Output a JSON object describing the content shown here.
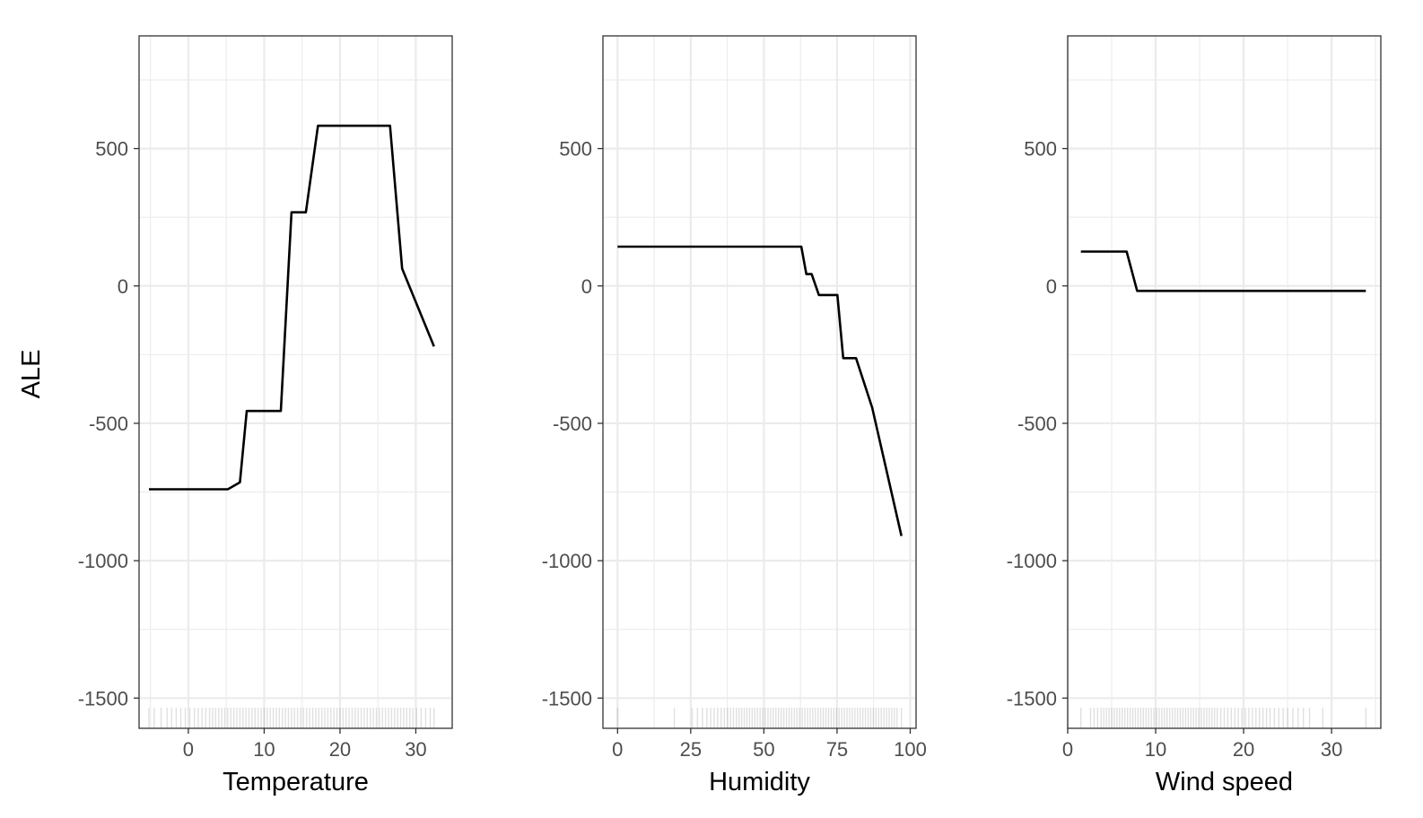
{
  "chart_data": [
    {
      "type": "line",
      "xlabel": "Temperature",
      "ylabel": "ALE",
      "xlim": [
        -6.5,
        34.8
      ],
      "ylim": [
        -1610,
        910
      ],
      "xticks": [
        0,
        10,
        20,
        30
      ],
      "yticks": [
        -1500,
        -1000,
        -500,
        0,
        500
      ],
      "grid": true,
      "x": [
        -5.2,
        5.2,
        6.8,
        7.7,
        12.2,
        13.6,
        15.5,
        17.1,
        26.6,
        28.2,
        32.4
      ],
      "y": [
        -740,
        -740,
        -715,
        -455,
        -455,
        268,
        268,
        583,
        583,
        63,
        -220
      ],
      "rug": [
        -5.2,
        -4.5,
        -3.6,
        -2.8,
        -2.2,
        -1.6,
        -1.0,
        -0.4,
        0.2,
        0.8,
        1.3,
        1.8,
        2.3,
        2.8,
        3.2,
        3.6,
        4.0,
        4.4,
        4.8,
        5.2,
        5.6,
        6.0,
        6.4,
        6.8,
        7.2,
        7.6,
        8.0,
        8.4,
        8.8,
        9.2,
        9.6,
        10.0,
        10.4,
        10.8,
        11.2,
        11.6,
        12.0,
        12.4,
        12.8,
        13.2,
        13.6,
        14.0,
        14.4,
        14.8,
        15.2,
        15.6,
        16.0,
        16.4,
        16.8,
        17.2,
        17.6,
        18.0,
        18.4,
        18.8,
        19.2,
        19.6,
        20.0,
        20.4,
        20.8,
        21.2,
        21.6,
        22.0,
        22.4,
        22.8,
        23.2,
        23.6,
        24.0,
        24.4,
        24.8,
        25.2,
        25.6,
        26.0,
        26.4,
        26.8,
        27.2,
        27.6,
        28.0,
        28.4,
        28.8,
        29.2,
        29.6,
        30.1,
        30.7,
        31.3,
        31.9,
        32.4
      ]
    },
    {
      "type": "line",
      "xlabel": "Humidity",
      "ylabel": "",
      "xlim": [
        -5,
        102
      ],
      "ylim": [
        -1610,
        910
      ],
      "xticks": [
        0,
        25,
        50,
        75,
        100
      ],
      "yticks": [
        -1500,
        -1000,
        -500,
        0,
        500
      ],
      "grid": true,
      "x": [
        0,
        62.8,
        64.5,
        66.3,
        68.8,
        75.1,
        77.1,
        81.5,
        87.0,
        97.0
      ],
      "y": [
        143,
        143,
        43,
        43,
        -33,
        -33,
        -263,
        -263,
        -443,
        -910
      ],
      "rug": [
        0,
        19.4,
        25.5,
        27.3,
        29.0,
        30.5,
        31.8,
        33.0,
        34.2,
        35.4,
        36.5,
        37.6,
        38.6,
        39.6,
        40.6,
        41.5,
        42.4,
        43.3,
        44.2,
        45.1,
        46.0,
        46.9,
        47.8,
        48.7,
        49.6,
        50.5,
        51.4,
        52.3,
        53.2,
        54.1,
        55.0,
        55.9,
        56.8,
        57.7,
        58.6,
        59.5,
        60.4,
        61.3,
        62.2,
        63.1,
        64.0,
        64.9,
        65.8,
        66.7,
        67.6,
        68.5,
        69.4,
        70.3,
        71.2,
        72.1,
        73.0,
        73.9,
        74.8,
        75.7,
        76.6,
        77.5,
        78.4,
        79.3,
        80.2,
        81.1,
        82.0,
        82.9,
        83.8,
        84.7,
        85.6,
        86.5,
        87.4,
        88.3,
        89.2,
        90.1,
        91.0,
        91.9,
        92.8,
        93.7,
        94.6,
        95.5,
        97.0
      ]
    },
    {
      "type": "line",
      "xlabel": "Wind speed",
      "ylabel": "",
      "xlim": [
        0,
        35.6
      ],
      "ylim": [
        -1610,
        910
      ],
      "xticks": [
        0,
        10,
        20,
        30
      ],
      "yticks": [
        -1500,
        -1000,
        -500,
        0,
        500
      ],
      "grid": true,
      "x": [
        1.5,
        6.7,
        7.9,
        33.9
      ],
      "y": [
        125,
        125,
        -18,
        -18
      ],
      "rug": [
        1.5,
        2.6,
        3.0,
        3.4,
        3.8,
        4.1,
        4.4,
        4.7,
        5.0,
        5.3,
        5.6,
        5.9,
        6.2,
        6.5,
        6.8,
        7.1,
        7.4,
        7.7,
        8.0,
        8.3,
        8.6,
        8.9,
        9.2,
        9.5,
        9.8,
        10.1,
        10.4,
        10.7,
        11.0,
        11.3,
        11.6,
        11.9,
        12.2,
        12.5,
        12.8,
        13.1,
        13.4,
        13.7,
        14.0,
        14.3,
        14.6,
        14.9,
        15.2,
        15.5,
        15.8,
        16.1,
        16.4,
        16.7,
        17.0,
        17.4,
        17.8,
        18.2,
        18.6,
        19.0,
        19.4,
        19.8,
        20.2,
        20.6,
        21.0,
        21.4,
        21.8,
        22.2,
        22.6,
        23.0,
        23.5,
        24.0,
        24.5,
        25.0,
        25.6,
        26.2,
        26.8,
        27.5,
        29.0,
        33.9
      ]
    }
  ]
}
